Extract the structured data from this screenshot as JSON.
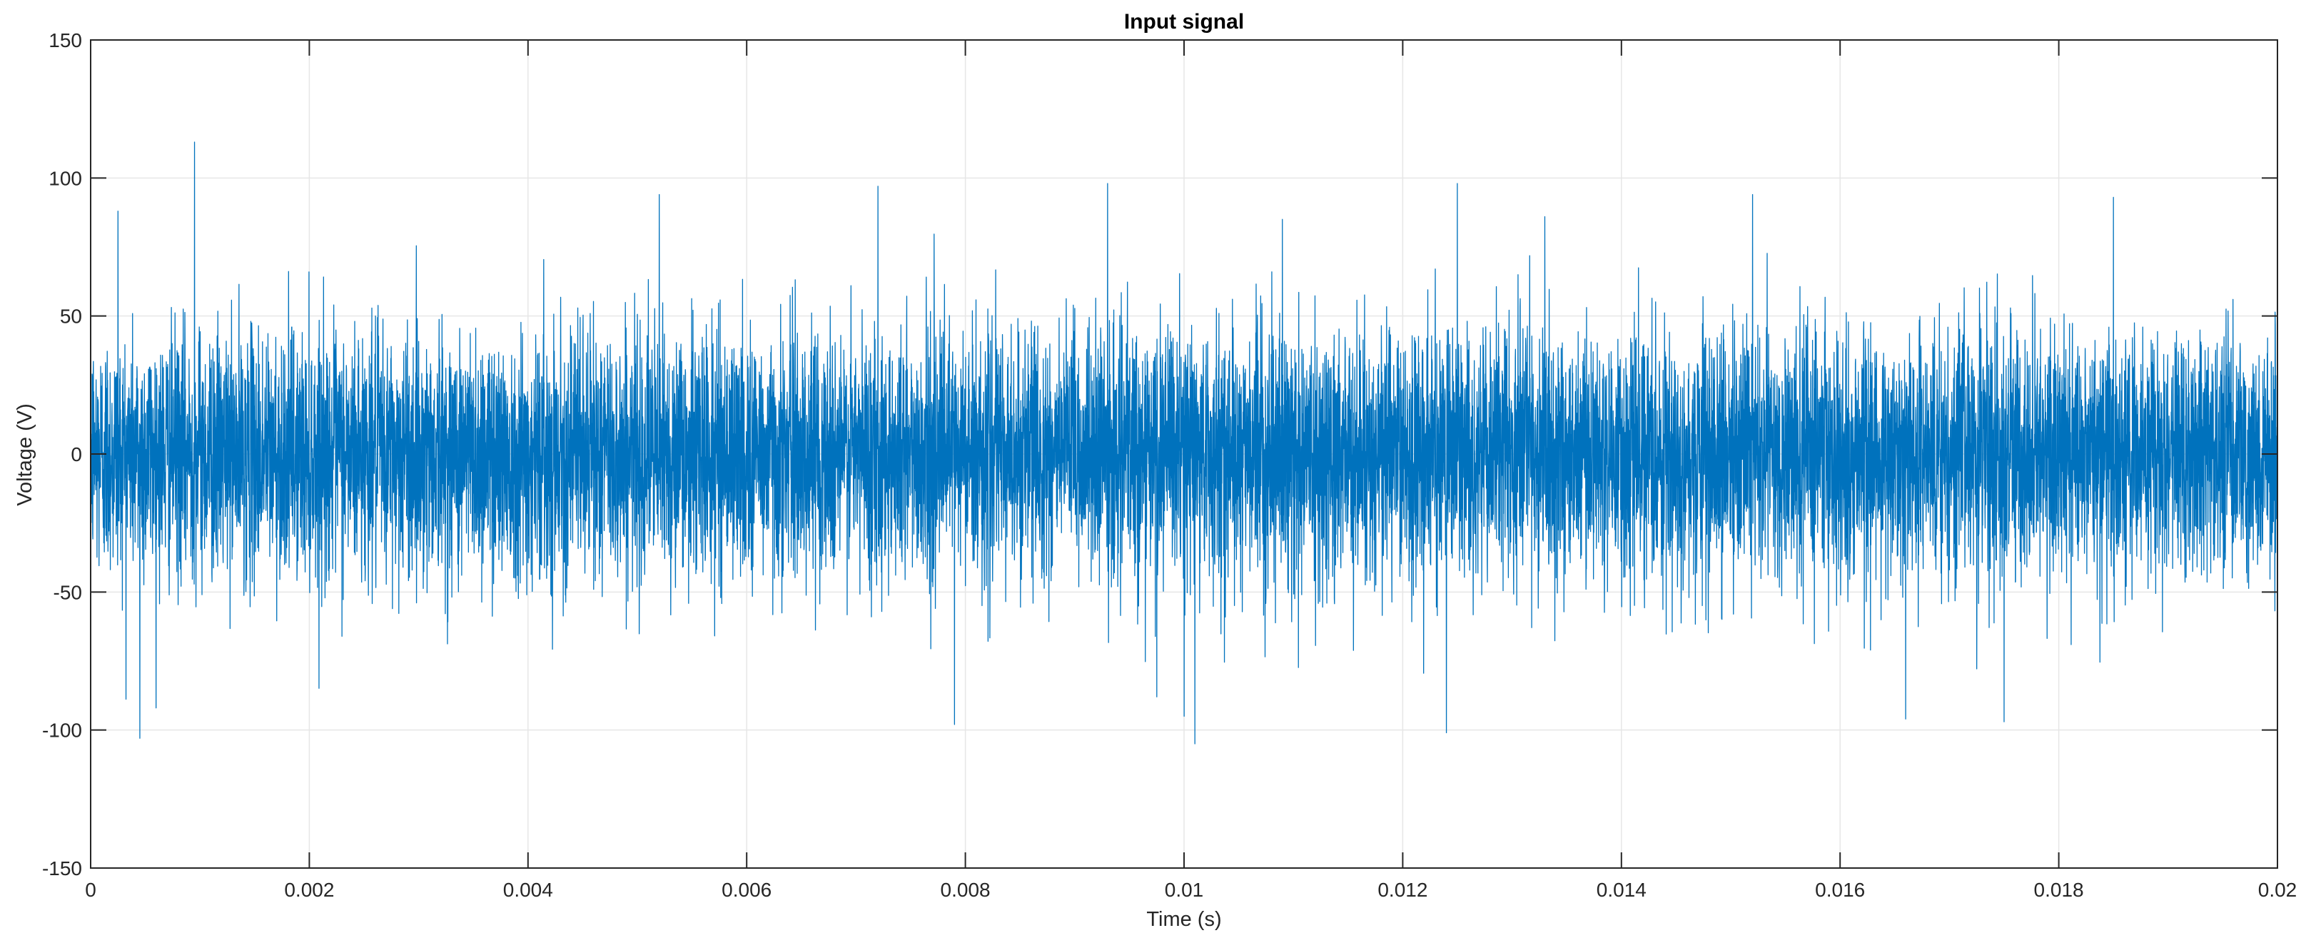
{
  "chart_data": {
    "type": "line",
    "title": "Input signal",
    "xlabel": "Time (s)",
    "ylabel": "Voltage (V)",
    "xlim": [
      0,
      0.02
    ],
    "ylim": [
      -150,
      150
    ],
    "x_ticks": [
      0,
      0.002,
      0.004,
      0.006,
      0.008,
      0.01,
      0.012,
      0.014,
      0.016,
      0.018,
      0.02
    ],
    "x_tick_labels": [
      "0",
      "0.002",
      "0.004",
      "0.006",
      "0.008",
      "0.01",
      "0.012",
      "0.014",
      "0.016",
      "0.018",
      "0.02"
    ],
    "y_ticks": [
      -150,
      -100,
      -50,
      0,
      50,
      100,
      150
    ],
    "y_tick_labels": [
      "-150",
      "-100",
      "-50",
      "0",
      "50",
      "100",
      "150"
    ],
    "grid": true,
    "box": true,
    "legend": "none",
    "series_color": "#0072BD",
    "series": [
      {
        "description": "dense white-noise signal, mean ~0 V, std ~22 V, sampled densely over 0 to 0.02 s",
        "notable_peaks": [
          {
            "x": 0.00095,
            "y": 113
          },
          {
            "x": 0.00045,
            "y": -103
          },
          {
            "x": 0.0101,
            "y": -105
          },
          {
            "x": 0.0124,
            "y": -101
          },
          {
            "x": 0.0079,
            "y": -98
          },
          {
            "x": 0.0072,
            "y": 97
          },
          {
            "x": 0.0093,
            "y": 98
          },
          {
            "x": 0.0125,
            "y": 98
          },
          {
            "x": 0.0166,
            "y": -96
          },
          {
            "x": 0.0175,
            "y": -97
          },
          {
            "x": 0.0152,
            "y": 94
          },
          {
            "x": 0.0052,
            "y": 94
          },
          {
            "x": 0.00025,
            "y": 88
          },
          {
            "x": 0.01,
            "y": -95
          },
          {
            "x": 0.0185,
            "y": 93
          },
          {
            "x": 0.00975,
            "y": -88
          },
          {
            "x": 0.0133,
            "y": 86
          },
          {
            "x": 0.0109,
            "y": 85
          }
        ]
      }
    ]
  },
  "colors": {
    "axis": "#262626",
    "grid": "#e6e6e6",
    "line": "#0072BD",
    "background": "#ffffff"
  }
}
